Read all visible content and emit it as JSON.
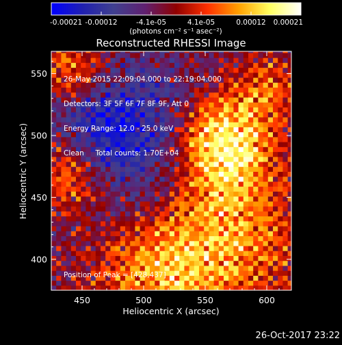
{
  "chart_data": {
    "type": "heatmap",
    "title": "Reconstructed RHESSI Image",
    "xlabel": "Heliocentric X (arcsec)",
    "ylabel": "Heliocentric Y (arcsec)",
    "xlim": [
      425,
      620
    ],
    "ylim": [
      375,
      568
    ],
    "x_ticks": [
      450,
      500,
      550,
      600
    ],
    "y_ticks": [
      400,
      450,
      500,
      550
    ],
    "colorbar": {
      "unit_label": "(photons cm⁻² s⁻¹ asec⁻²)",
      "ticks": [
        "-0.00021",
        "-0.00012",
        "-4.1e-05",
        "4.1e-05",
        "0.00012",
        "0.00021"
      ],
      "range": [
        -0.00021,
        0.00021
      ]
    },
    "annotation_lines": [
      "26-May-2015 22:09:04.000 to 22:19:04.000",
      "Detectors: 3F 5F 6F 7F 8F 9F, Att 0",
      "Energy Range: 12.0 - 25.0 keV",
      "Clean     Total counts: 1.70E+04"
    ],
    "peak_text": "Position of Peak = [428,437]",
    "peak": [
      428,
      437
    ],
    "timestamp": "26-Oct-2017 23:22",
    "bright_regions": [
      {
        "center": [
          563,
          495
        ],
        "width": 28,
        "peak_value": 0.00021
      },
      {
        "center": [
          560,
          418
        ],
        "width": 45,
        "peak_value": 0.00016
      },
      {
        "center": [
          440,
          470
        ],
        "width": 22,
        "peak_value": 0.00014
      },
      {
        "center": [
          440,
          555
        ],
        "width": 22,
        "peak_value": 0.00011
      },
      {
        "center": [
          500,
          380
        ],
        "width": 35,
        "peak_value": 0.0001
      },
      {
        "center": [
          600,
          540
        ],
        "width": 20,
        "peak_value": 9e-05
      }
    ],
    "dim_regions": [
      {
        "center": [
          500,
          490
        ],
        "width": 40,
        "peak_value": -0.00012
      },
      {
        "center": [
          460,
          505
        ],
        "width": 25,
        "peak_value": -8e-05
      }
    ],
    "colors": {
      "background": "#000000",
      "colormap": [
        "#0000ff",
        "#2020b0",
        "#404090",
        "#602070",
        "#900000",
        "#ff3000",
        "#ffa000",
        "#ffff60",
        "#ffffff"
      ]
    }
  }
}
